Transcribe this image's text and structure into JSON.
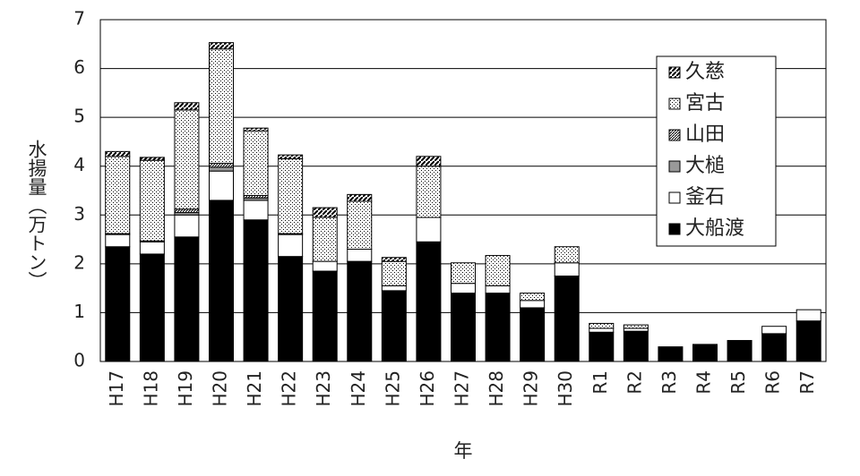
{
  "chart_data": {
    "type": "stacked_bar",
    "ylabel": "水揚量（万トン）",
    "xlabel": "年",
    "categories": [
      "H17",
      "H18",
      "H19",
      "H20",
      "H21",
      "H22",
      "H23",
      "H24",
      "H25",
      "H26",
      "H27",
      "H28",
      "H29",
      "H30",
      "R1",
      "R2",
      "R3",
      "R4",
      "R5",
      "R6",
      "R7"
    ],
    "series": [
      {
        "name": "大船渡",
        "color": "#000000",
        "pattern": "solid",
        "values": [
          2.35,
          2.2,
          2.55,
          3.3,
          2.9,
          2.15,
          1.85,
          2.05,
          1.45,
          2.45,
          1.4,
          1.4,
          1.1,
          1.75,
          0.6,
          0.62,
          0.3,
          0.35,
          0.43,
          0.57,
          0.83
        ]
      },
      {
        "name": "釜石",
        "color": "#ffffff",
        "pattern": "solid",
        "values": [
          0.25,
          0.25,
          0.45,
          0.6,
          0.4,
          0.45,
          0.2,
          0.25,
          0.1,
          0.5,
          0.2,
          0.15,
          0.15,
          0.27,
          0.08,
          0.06,
          0,
          0,
          0,
          0.15,
          0.23
        ]
      },
      {
        "name": "大槌",
        "color": "#999999",
        "pattern": "solid",
        "values": [
          0,
          0,
          0.05,
          0.08,
          0.05,
          0,
          0,
          0,
          0,
          0,
          0,
          0,
          0,
          0,
          0,
          0,
          0,
          0,
          0,
          0,
          0
        ]
      },
      {
        "name": "山田",
        "color": "#000000",
        "pattern": "crosshatch",
        "values": [
          0.02,
          0.02,
          0.07,
          0.08,
          0.05,
          0.02,
          0,
          0,
          0,
          0,
          0,
          0,
          0,
          0,
          0,
          0,
          0,
          0,
          0,
          0,
          0
        ]
      },
      {
        "name": "宮古",
        "color": "#000000",
        "pattern": "dots",
        "values": [
          1.58,
          1.65,
          2.03,
          2.34,
          1.32,
          1.53,
          0.9,
          0.98,
          0.5,
          1.05,
          0.42,
          0.62,
          0.15,
          0.33,
          0.1,
          0.07,
          0,
          0,
          0,
          0,
          0
        ]
      },
      {
        "name": "久慈",
        "color": "#000000",
        "pattern": "diagonal",
        "values": [
          0.1,
          0.06,
          0.15,
          0.13,
          0.06,
          0.08,
          0.2,
          0.14,
          0.08,
          0.2,
          0,
          0,
          0,
          0,
          0,
          0,
          0,
          0,
          0,
          0,
          0
        ]
      }
    ],
    "ylim": [
      0,
      7
    ],
    "yticks": [
      0,
      1,
      2,
      3,
      4,
      5,
      6,
      7
    ],
    "grid": true,
    "legend": "upper right"
  }
}
